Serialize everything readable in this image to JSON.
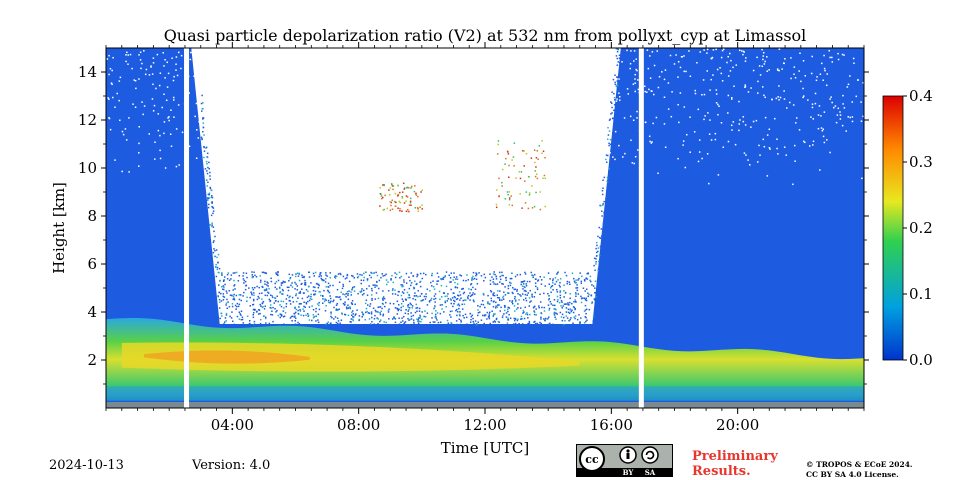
{
  "chart_data": {
    "type": "heatmap",
    "title": "Quasi particle depolarization ratio (V2) at 532 nm from pollyxt_cyp at Limassol",
    "xlabel": "Time [UTC]",
    "ylabel": "Height [km]",
    "xlim_hours": [
      0,
      24
    ],
    "ylim_km": [
      0,
      15
    ],
    "x_ticks": [
      {
        "value": 4,
        "label": "04:00"
      },
      {
        "value": 8,
        "label": "08:00"
      },
      {
        "value": 12,
        "label": "12:00"
      },
      {
        "value": 16,
        "label": "16:00"
      },
      {
        "value": 20,
        "label": "20:00"
      }
    ],
    "y_ticks": [
      {
        "value": 2,
        "label": "2"
      },
      {
        "value": 4,
        "label": "4"
      },
      {
        "value": 6,
        "label": "6"
      },
      {
        "value": 8,
        "label": "8"
      },
      {
        "value": 10,
        "label": "10"
      },
      {
        "value": 12,
        "label": "12"
      },
      {
        "value": 14,
        "label": "14"
      }
    ],
    "colorbar": {
      "range": [
        0,
        0.4
      ],
      "ticks": [
        {
          "value": 0.0,
          "label": "0.0"
        },
        {
          "value": 0.1,
          "label": "0.1"
        },
        {
          "value": 0.2,
          "label": "0.2"
        },
        {
          "value": 0.3,
          "label": "0.3"
        },
        {
          "value": 0.4,
          "label": "0.4"
        }
      ],
      "colors": [
        "#0033cc",
        "#00a0e0",
        "#30d050",
        "#e8e820",
        "#ff8800",
        "#dd0000"
      ]
    },
    "data_gaps_hours": [
      2.55,
      16.95
    ],
    "layers": [
      {
        "name": "",
        "type": "aerosol_layer",
        "height_km": [
          0.3,
          3.7
        ],
        "value": 0.17
      },
      {
        "name": "",
        "type": "dust_core",
        "height_km": [
          1.6,
          2.7
        ],
        "value": 0.27
      },
      {
        "name": "",
        "type": "free_troposphere",
        "height_km": [
          3.7,
          15
        ],
        "value": 0.02
      },
      {
        "name": "",
        "type": "daytime_noise",
        "time_hours": [
          3.6,
          15.4
        ],
        "height_km": [
          3.5,
          15
        ],
        "value": null
      }
    ]
  },
  "footer": {
    "date": "2024-10-13",
    "version": "Version: 4.0",
    "preliminary_line1": "Preliminary",
    "preliminary_line2": "Results.",
    "copyright_line1": "© TROPOS & ECoE 2024.",
    "copyright_line2": "CC BY SA 4.0 License.",
    "license_badge": {
      "by": "BY",
      "sa": "SA"
    }
  }
}
